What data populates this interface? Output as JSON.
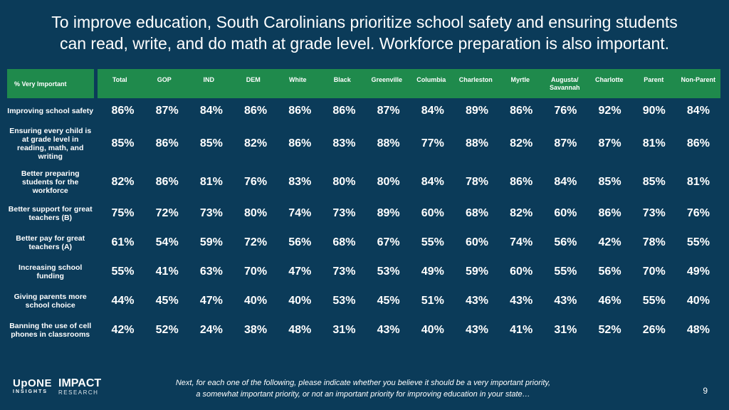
{
  "title_line1": "To improve education, South Carolinians prioritize school safety and ensuring students",
  "title_line2": "can read, write, and do math at grade level. Workforce preparation is also important.",
  "chart_data": {
    "type": "table",
    "corner_label": "% Very Important",
    "columns": [
      "Total",
      "GOP",
      "IND",
      "DEM",
      "White",
      "Black",
      "Greenville",
      "Columbia",
      "Charleston",
      "Myrtle",
      "Augusta/ Savannah",
      "Charlotte",
      "Parent",
      "Non-Parent"
    ],
    "rows": [
      {
        "label": "Improving school safety",
        "values": [
          "86%",
          "87%",
          "84%",
          "86%",
          "86%",
          "86%",
          "87%",
          "84%",
          "89%",
          "86%",
          "76%",
          "92%",
          "90%",
          "84%"
        ]
      },
      {
        "label": "Ensuring every child is at grade level in reading, math, and writing",
        "values": [
          "85%",
          "86%",
          "85%",
          "82%",
          "86%",
          "83%",
          "88%",
          "77%",
          "88%",
          "82%",
          "87%",
          "87%",
          "81%",
          "86%"
        ]
      },
      {
        "label": "Better preparing students for the workforce",
        "values": [
          "82%",
          "86%",
          "81%",
          "76%",
          "83%",
          "80%",
          "80%",
          "84%",
          "78%",
          "86%",
          "84%",
          "85%",
          "85%",
          "81%"
        ]
      },
      {
        "label": "Better support for great teachers (B)",
        "values": [
          "75%",
          "72%",
          "73%",
          "80%",
          "74%",
          "73%",
          "89%",
          "60%",
          "68%",
          "82%",
          "60%",
          "86%",
          "73%",
          "76%"
        ]
      },
      {
        "label": "Better pay for great teachers (A)",
        "values": [
          "61%",
          "54%",
          "59%",
          "72%",
          "56%",
          "68%",
          "67%",
          "55%",
          "60%",
          "74%",
          "56%",
          "42%",
          "78%",
          "55%"
        ]
      },
      {
        "label": "Increasing school funding",
        "values": [
          "55%",
          "41%",
          "63%",
          "70%",
          "47%",
          "73%",
          "53%",
          "49%",
          "59%",
          "60%",
          "55%",
          "56%",
          "70%",
          "49%"
        ]
      },
      {
        "label": "Giving parents more school choice",
        "values": [
          "44%",
          "45%",
          "47%",
          "40%",
          "40%",
          "53%",
          "45%",
          "51%",
          "43%",
          "43%",
          "43%",
          "46%",
          "55%",
          "40%"
        ]
      },
      {
        "label": "Banning the use of cell phones in classrooms",
        "values": [
          "42%",
          "52%",
          "24%",
          "38%",
          "48%",
          "31%",
          "43%",
          "40%",
          "43%",
          "41%",
          "31%",
          "52%",
          "26%",
          "48%"
        ]
      }
    ]
  },
  "footer": {
    "note_line1": "Next, for each one of the following, please indicate whether you believe it should be a very important priority,",
    "note_line2": "a somewhat important priority, or not an important priority for improving education in your state…",
    "page_number": "9",
    "logo_upone": "UpONE",
    "logo_upone_sub": "INSIGHTS",
    "logo_impact": "IMPACT",
    "logo_impact_sub": "RESEARCH"
  },
  "colors": {
    "background": "#0b3b59",
    "header_green": "#1f8a4c",
    "text": "#ffffff"
  }
}
